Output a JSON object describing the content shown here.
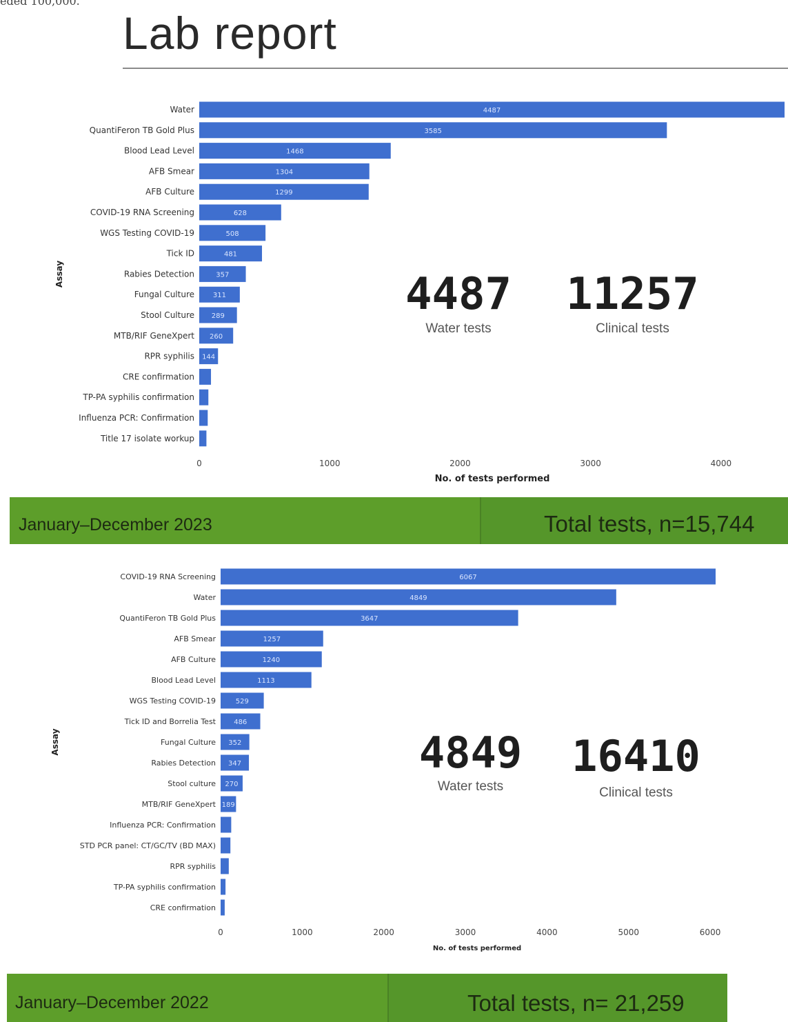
{
  "header": {
    "clip_text": "eded 100,000.",
    "title": "Lab report"
  },
  "colors": {
    "bar": "#3f6fcf",
    "band": "#5d9e2a"
  },
  "chart_data": [
    {
      "type": "bar",
      "orientation": "horizontal",
      "ylabel": "Assay",
      "xlabel": "No. of tests performed",
      "xticks": [
        0,
        1000,
        2000,
        3000,
        4000
      ],
      "xlim": [
        0,
        4487
      ],
      "categories": [
        "Water",
        "QuantiFeron TB Gold Plus",
        "Blood Lead Level",
        "AFB Smear",
        "AFB Culture",
        "COVID-19 RNA Screening",
        "WGS Testing COVID-19",
        "Tick ID",
        "Rabies Detection",
        "Fungal Culture",
        "Stool Culture",
        "MTB/RIF GeneXpert",
        "RPR syphilis",
        "CRE confirmation",
        "TP-PA syphilis confirmation",
        "Influenza PCR: Confirmation",
        "Title 17 isolate workup"
      ],
      "values": [
        4487,
        3585,
        1468,
        1304,
        1299,
        628,
        508,
        481,
        357,
        311,
        289,
        260,
        144,
        90,
        70,
        65,
        55
      ],
      "data_labels": [
        "4487",
        "3585",
        "1468",
        "1304",
        "1299",
        "628",
        "508",
        "481",
        "357",
        "311",
        "289",
        "260",
        "144",
        "",
        "",
        "",
        ""
      ]
    },
    {
      "type": "bar",
      "orientation": "horizontal",
      "ylabel": "Assay",
      "xlabel": "No. of tests performed",
      "xticks": [
        0,
        1000,
        2000,
        3000,
        4000,
        5000,
        6000
      ],
      "xlim": [
        0,
        6067
      ],
      "categories": [
        "COVID-19 RNA Screening",
        "Water",
        "QuantiFeron TB Gold Plus",
        "AFB Smear",
        "AFB Culture",
        "Blood Lead Level",
        "WGS Testing COVID-19",
        "Tick ID and Borrelia Test",
        "Fungal Culture",
        "Rabies Detection",
        "Stool culture",
        "MTB/RIF GeneXpert",
        "Influenza PCR: Confirmation",
        "STD PCR panel: CT/GC/TV (BD MAX)",
        "RPR syphilis",
        "TP-PA syphilis confirmation",
        "CRE confirmation"
      ],
      "values": [
        6067,
        4849,
        3647,
        1257,
        1240,
        1113,
        529,
        486,
        352,
        347,
        270,
        189,
        130,
        120,
        100,
        60,
        50
      ],
      "data_labels": [
        "6067",
        "4849",
        "3647",
        "1257",
        "1240",
        "1113",
        "529",
        "486",
        "352",
        "347",
        "270",
        "189",
        "",
        "",
        "",
        "",
        ""
      ]
    }
  ],
  "stats_2023": {
    "water": {
      "value": "4487",
      "label": "Water tests"
    },
    "clinical": {
      "value": "11257",
      "label": "Clinical tests"
    }
  },
  "stats_2022": {
    "water": {
      "value": "4849",
      "label": "Water tests"
    },
    "clinical": {
      "value": "16410",
      "label": "Clinical tests"
    }
  },
  "band_2023": {
    "period": "January–December 2023",
    "total": "Total tests, n=15,744"
  },
  "band_2022": {
    "period": "January–December 2022",
    "total": "Total tests, n= 21,259"
  }
}
